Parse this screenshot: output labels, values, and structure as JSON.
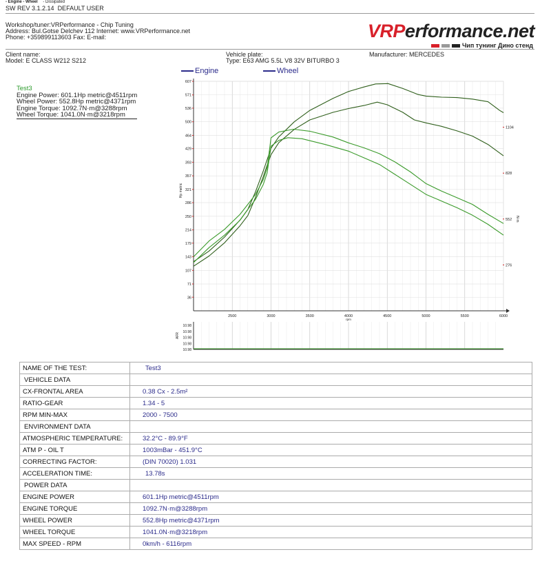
{
  "header": {
    "legend_top_engine": "- Engine",
    "legend_top_wheel": "- Wheel",
    "legend_top_dissipated": "- Dissipated",
    "sw_rev": "SW REV 3.1.2.14",
    "user": "DEFAULT USER"
  },
  "workshop": {
    "line1": "Workshop/tuner:VRPerformance - Chip Tuning",
    "line2": "Address: Bul.Gotse Delchev 112 Internet: www.VRPerformance.net",
    "line3": "Phone: +359899113603 Fax:  E-mail:"
  },
  "logo": {
    "part1": "VRP",
    "part2": "erformance.net",
    "sub": "Чип тунинг  Дино стенд",
    "red": "#d8202a",
    "gray": "#999999",
    "dark": "#222222"
  },
  "client": {
    "name_label": "Client name:",
    "model": "Model: E CLASS W212 S212",
    "plate_label": "Vehicle plate:",
    "type": "Type: E63 AMG 5.5L V8 32V BITURBO 3",
    "manufacturer": "Manufacturer: MERCEDES"
  },
  "legend": {
    "engine": "Engine",
    "wheel": "Wheel",
    "engine_color": "#2e5e1a",
    "wheel_color": "#3a9a2a"
  },
  "test": {
    "name": "Test3",
    "engine_power": "Engine Power: 601.1Hp metric@4511rpm",
    "wheel_power": "Wheel Power: 552.8Hp metric@4371rpm",
    "engine_torque": "Engine Torque: 1092.7N·m@3288rpm",
    "wheel_torque": "Wheel Torque: 1041.0N·m@3218rpm"
  },
  "chart_data": {
    "type": "line",
    "xlabel": "rpm",
    "ylabel": "Hp metric",
    "y2label": "N·m",
    "xlim": [
      2000,
      6000
    ],
    "ylim": [
      0,
      607
    ],
    "y2lim": [
      0,
      1380
    ],
    "x_ticks": [
      2500,
      3000,
      3500,
      4000,
      4500,
      5000,
      5500,
      6000
    ],
    "y_ticks": [
      36,
      71,
      107,
      143,
      179,
      214,
      250,
      286,
      321,
      357,
      393,
      429,
      464,
      500,
      536,
      571,
      607
    ],
    "y2_ticks": [
      276,
      552,
      828,
      1104
    ],
    "y2_tick_labels": [
      "276",
      "552",
      "828",
      "1104"
    ],
    "grid": true,
    "series": [
      {
        "name": "Engine",
        "axis": "left",
        "color": "#2e5e1a",
        "x": [
          2000,
          2200,
          2400,
          2600,
          2700,
          2800,
          2900,
          2950,
          3000,
          3100,
          3300,
          3500,
          3800,
          4000,
          4200,
          4350,
          4511,
          4700,
          4900,
          5000,
          5200,
          5400,
          5600,
          5800,
          5950,
          6000
        ],
        "y": [
          130,
          158,
          195,
          240,
          268,
          315,
          370,
          400,
          430,
          460,
          500,
          530,
          562,
          580,
          592,
          600,
          601,
          588,
          572,
          568,
          565,
          564,
          560,
          553,
          530,
          524
        ]
      },
      {
        "name": "Wheel",
        "axis": "left",
        "color": "#2e5e1a",
        "x": [
          2000,
          2200,
          2400,
          2600,
          2700,
          2800,
          2900,
          2950,
          3000,
          3100,
          3300,
          3500,
          3800,
          4000,
          4200,
          4371,
          4500,
          4700,
          4850,
          5000,
          5200,
          5400,
          5600,
          5800,
          6000
        ],
        "y": [
          118,
          145,
          180,
          225,
          252,
          300,
          355,
          385,
          413,
          445,
          480,
          505,
          525,
          535,
          543,
          552,
          545,
          525,
          505,
          497,
          488,
          476,
          462,
          440,
          410
        ]
      },
      {
        "name": "Engine",
        "axis": "right",
        "color": "#3a9a2a",
        "x": [
          2000,
          2200,
          2400,
          2600,
          2700,
          2800,
          2900,
          2950,
          3000,
          3100,
          3288,
          3500,
          3800,
          4000,
          4200,
          4400,
          4600,
          4800,
          5000,
          5200,
          5400,
          5600,
          5800,
          6000
        ],
        "y": [
          325,
          420,
          490,
          580,
          640,
          700,
          790,
          860,
          1040,
          1075,
          1092,
          1080,
          1045,
          1010,
          980,
          945,
          895,
          835,
          765,
          720,
          680,
          640,
          580,
          525
        ]
      },
      {
        "name": "Wheel",
        "axis": "right",
        "color": "#3a9a2a",
        "x": [
          2000,
          2200,
          2400,
          2600,
          2700,
          2800,
          2900,
          2950,
          3000,
          3100,
          3218,
          3400,
          3700,
          4000,
          4200,
          4400,
          4600,
          4800,
          5000,
          5200,
          5400,
          5600,
          5800,
          6000
        ],
        "y": [
          290,
          380,
          455,
          545,
          610,
          670,
          760,
          830,
          990,
          1025,
          1041,
          1035,
          1000,
          960,
          920,
          880,
          820,
          760,
          700,
          660,
          620,
          575,
          520,
          455
        ]
      }
    ],
    "afr": {
      "ylabel": "AFR",
      "ticks": [
        "10.98",
        "10.98",
        "10.98",
        "10.98",
        "10.98"
      ]
    }
  },
  "table": {
    "rows": [
      {
        "k": "NAME OF THE TEST:",
        "v": "Test3",
        "sec": false
      },
      {
        "k": "VEHICLE DATA",
        "v": "",
        "sec": true
      },
      {
        "k": "CX-FRONTAL AREA",
        "v": "0.38 Cx - 2.5m²",
        "sec": false
      },
      {
        "k": "RATIO-GEAR",
        "v": "1.34 - 5",
        "sec": false
      },
      {
        "k": "RPM MIN-MAX",
        "v": "2000 - 7500",
        "sec": false
      },
      {
        "k": "ENVIRONMENT DATA",
        "v": "",
        "sec": true
      },
      {
        "k": "ATMOSPHERIC TEMPERATURE:",
        "v": "32.2°C - 89.9°F",
        "sec": false
      },
      {
        "k": "ATM P - OIL T",
        "v": "1003mBar - 451.9°C",
        "sec": false
      },
      {
        "k": "CORRECTING FACTOR:",
        "v": "(DIN 70020) 1.031",
        "sec": false
      },
      {
        "k": "ACCELERATION TIME:",
        "v": "13.78s",
        "sec": false
      },
      {
        "k": "POWER DATA",
        "v": "",
        "sec": true
      },
      {
        "k": "ENGINE POWER",
        "v": "601.1Hp metric@4511rpm",
        "sec": false
      },
      {
        "k": "ENGINE TORQUE",
        "v": "1092.7N·m@3288rpm",
        "sec": false
      },
      {
        "k": "WHEEL POWER",
        "v": "552.8Hp metric@4371rpm",
        "sec": false
      },
      {
        "k": "WHEEL TORQUE",
        "v": "1041.0N·m@3218rpm",
        "sec": false
      },
      {
        "k": "MAX SPEED - RPM",
        "v": "0km/h - 6116rpm",
        "sec": false
      }
    ]
  }
}
